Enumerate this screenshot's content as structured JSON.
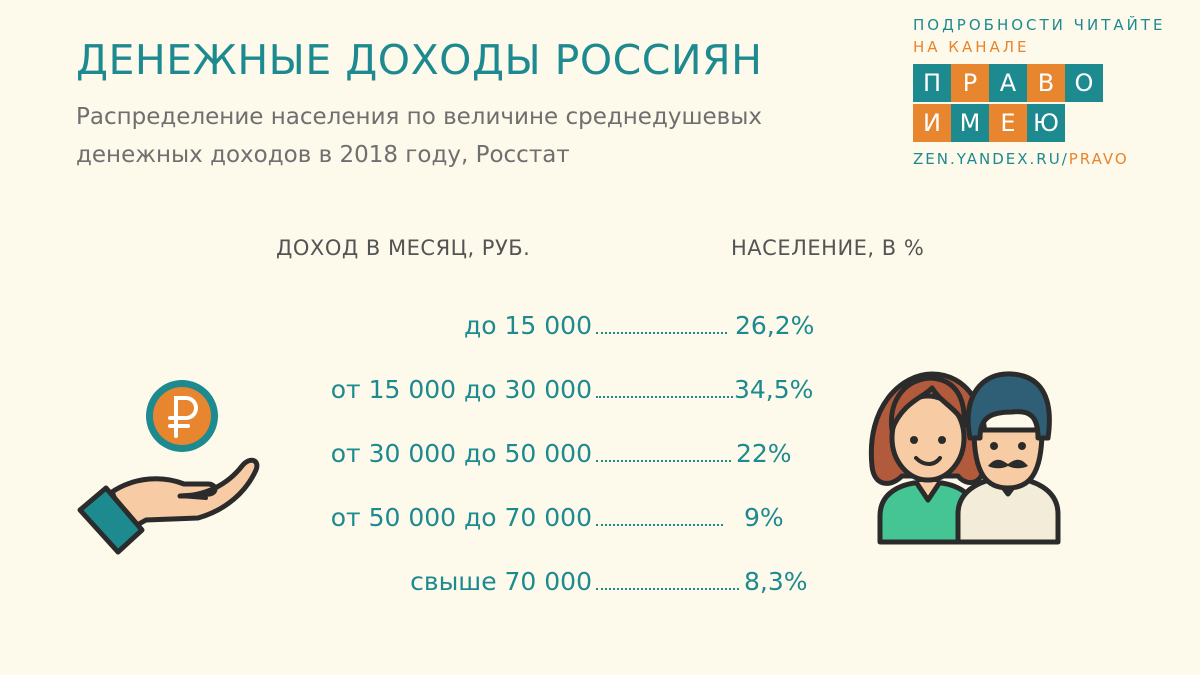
{
  "title": "ДЕНЕЖНЫЕ ДОХОДЫ РОССИЯН",
  "subtitle": "Распределение населения по величине среднедушевых денежных доходов в 2018 году, Росстат",
  "brand": {
    "line1": "ПОДРОБНОСТИ ЧИТАЙТЕ",
    "line2": "НА КАНАЛЕ",
    "tiles_row1": [
      "П",
      "Р",
      "А",
      "В",
      "О"
    ],
    "tiles_row2": [
      "И",
      "М",
      "Е",
      "Ю"
    ],
    "url_part1": "ZEN.YANDEX.RU/",
    "url_part2": "PRAVO",
    "teal": "#1d8a90",
    "orange": "#e8852f"
  },
  "chart_data": {
    "type": "table",
    "columns": [
      "ДОХОД В МЕСЯЦ, РУБ.",
      "НАСЕЛЕНИЕ, В %"
    ],
    "categories": [
      "до 15 000",
      "от 15 000 до 30 000",
      "от 30 000 до 50 000",
      "от 50 000 до 70 000",
      "свыше 70 000"
    ],
    "values": [
      26.2,
      34.5,
      22,
      9,
      8.3
    ],
    "value_labels": [
      "26,2%",
      "34,5%",
      "22%",
      "9%",
      "8,3%"
    ]
  },
  "icons": {
    "left": "hand-with-ruble-coin-icon",
    "right": "people-couple-icon"
  },
  "colors": {
    "background": "#fdf9eb",
    "accent": "#1d8a90",
    "subtitle": "#6f6f6f",
    "headers": "#545454"
  }
}
